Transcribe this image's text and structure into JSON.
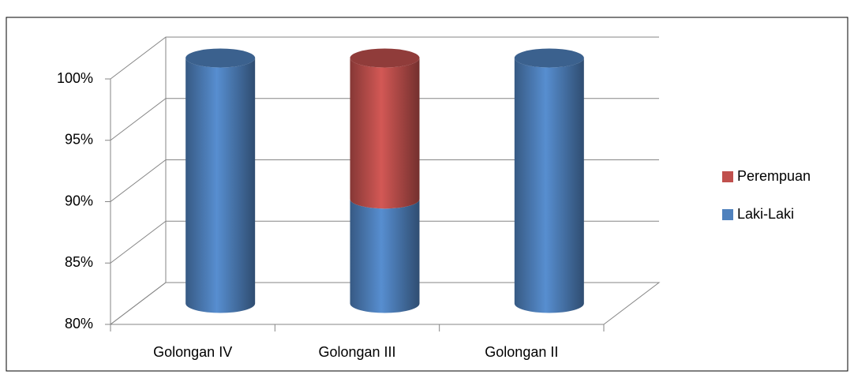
{
  "chart_data": {
    "type": "bar3d_stacked",
    "categories": [
      "Golongan IV",
      "Golongan III",
      "Golongan II"
    ],
    "series": [
      {
        "name": "Laki-Laki",
        "color": "#4f81bd",
        "values": [
          100,
          88.5,
          100
        ]
      },
      {
        "name": "Perempuan",
        "color": "#c0504d",
        "values": [
          0,
          11.5,
          0
        ]
      }
    ],
    "ylim": [
      80,
      100
    ],
    "yticks": [
      {
        "value": 80,
        "label": "80%"
      },
      {
        "value": 85,
        "label": "85%"
      },
      {
        "value": 90,
        "label": "90%"
      },
      {
        "value": 95,
        "label": "95%"
      },
      {
        "value": 100,
        "label": "100%"
      }
    ],
    "grid": true,
    "legend": "right"
  }
}
